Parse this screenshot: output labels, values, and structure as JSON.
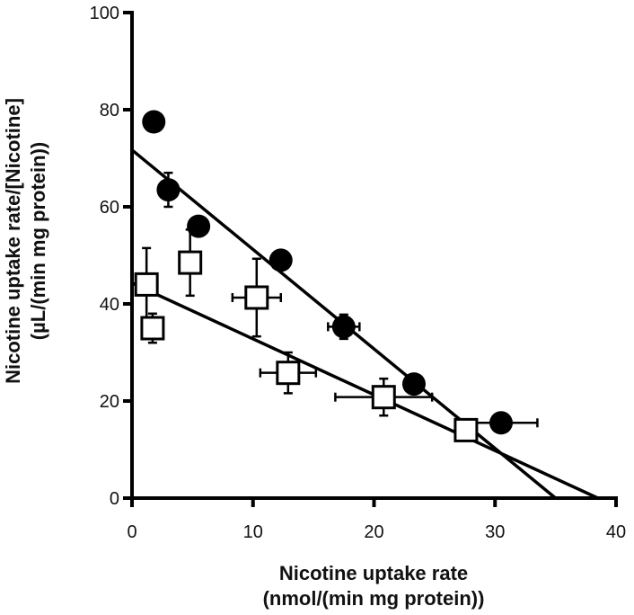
{
  "chart_data": {
    "type": "scatter",
    "xlabel_lines": [
      "Nicotine uptake rate",
      "(nmol/(min mg protein))"
    ],
    "ylabel_lines": [
      "Nicotine uptake rate/[Nicotine]",
      "(µL/(min  mg protein))"
    ],
    "xlim": [
      0,
      40
    ],
    "ylim": [
      0,
      100
    ],
    "xticks": [
      0,
      10,
      20,
      30,
      40
    ],
    "yticks": [
      0,
      20,
      40,
      60,
      80,
      100
    ],
    "grid": false,
    "legend": "none",
    "series": [
      {
        "marker": "filled-circle",
        "color": "#000000",
        "points": [
          {
            "x": 1.8,
            "y": 77.5,
            "xerr": 0,
            "yerr": 0
          },
          {
            "x": 3.0,
            "y": 63.5,
            "xerr": 0,
            "yerr": 3.5
          },
          {
            "x": 5.5,
            "y": 56.0,
            "xerr": 0,
            "yerr": 0
          },
          {
            "x": 12.3,
            "y": 49.0,
            "xerr": 0,
            "yerr": 0
          },
          {
            "x": 17.5,
            "y": 35.3,
            "xerr": 1.3,
            "yerr": 2.5
          },
          {
            "x": 23.3,
            "y": 23.5,
            "xerr": 0,
            "yerr": 0
          },
          {
            "x": 30.5,
            "y": 15.5,
            "xerr": 3.0,
            "yerr": 0
          }
        ],
        "fit_line": {
          "x0": 0,
          "y0": 71.7,
          "x1": 35.0,
          "y1": 0
        }
      },
      {
        "marker": "open-square",
        "color": "#000000",
        "points": [
          {
            "x": 1.2,
            "y": 44.0,
            "xerr": 0,
            "yerr": 7.5
          },
          {
            "x": 1.7,
            "y": 35.0,
            "xerr": 0,
            "yerr": 3.0
          },
          {
            "x": 4.8,
            "y": 48.5,
            "xerr": 0,
            "yerr": 6.8
          },
          {
            "x": 10.3,
            "y": 41.3,
            "xerr": 2.0,
            "yerr": 8.0
          },
          {
            "x": 12.9,
            "y": 25.8,
            "xerr": 2.3,
            "yerr": 4.2
          },
          {
            "x": 20.8,
            "y": 20.8,
            "xerr": 4.0,
            "yerr": 3.8
          },
          {
            "x": 27.6,
            "y": 14.0,
            "xerr": 0,
            "yerr": 0
          }
        ],
        "fit_line": {
          "x0": 0,
          "y0": 44.3,
          "x1": 38.5,
          "y1": 0
        }
      }
    ]
  }
}
